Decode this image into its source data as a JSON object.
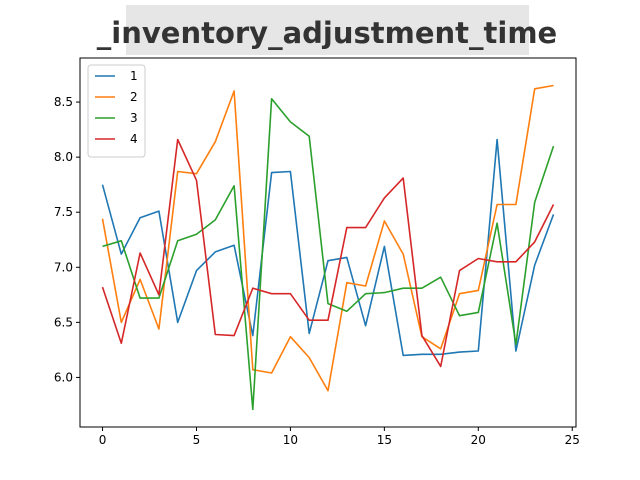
{
  "chart_data": {
    "type": "line",
    "title": "_inventory_adjustment_time",
    "xlabel": "",
    "ylabel": "",
    "xlim": [
      -1.2,
      25.2
    ],
    "ylim": [
      5.55,
      8.9
    ],
    "xticks": [
      0,
      5,
      10,
      15,
      20,
      25
    ],
    "yticks": [
      6.0,
      6.5,
      7.0,
      7.5,
      8.0,
      8.5
    ],
    "ytick_labels": [
      "6.0",
      "6.5",
      "7.0",
      "7.5",
      "8.0",
      "8.5"
    ],
    "grid": false,
    "legend_position": "top-left",
    "x": [
      0,
      1,
      2,
      3,
      4,
      5,
      6,
      7,
      8,
      9,
      10,
      11,
      12,
      13,
      14,
      15,
      16,
      17,
      18,
      19,
      20,
      21,
      22,
      23,
      24
    ],
    "series": [
      {
        "name": "1",
        "color": "#1f77b4",
        "values": [
          7.75,
          7.12,
          7.45,
          7.51,
          6.5,
          6.97,
          7.14,
          7.2,
          6.38,
          7.86,
          7.87,
          6.4,
          7.06,
          7.09,
          6.47,
          7.19,
          6.2,
          6.21,
          6.21,
          6.23,
          6.24,
          8.16,
          6.24,
          7.02,
          7.48
        ]
      },
      {
        "name": "2",
        "color": "#ff7f0e",
        "values": [
          7.44,
          6.5,
          6.89,
          6.44,
          7.87,
          7.85,
          8.14,
          8.6,
          6.07,
          6.04,
          6.37,
          6.18,
          5.88,
          6.86,
          6.83,
          7.42,
          7.12,
          6.37,
          6.26,
          6.76,
          6.79,
          7.57,
          7.57,
          8.62,
          8.65
        ]
      },
      {
        "name": "3",
        "color": "#2ca02c",
        "values": [
          7.19,
          7.24,
          6.72,
          6.72,
          7.24,
          7.3,
          7.43,
          7.74,
          5.71,
          8.53,
          8.32,
          8.19,
          6.67,
          6.6,
          6.76,
          6.77,
          6.81,
          6.81,
          6.91,
          6.56,
          6.59,
          7.4,
          6.3,
          7.59,
          8.1
        ]
      },
      {
        "name": "4",
        "color": "#d62728",
        "values": [
          6.82,
          6.31,
          7.13,
          6.75,
          8.16,
          7.79,
          6.39,
          6.38,
          6.81,
          6.76,
          6.76,
          6.52,
          6.52,
          7.36,
          7.36,
          7.63,
          7.81,
          6.38,
          6.1,
          6.97,
          7.08,
          7.05,
          7.05,
          7.23,
          7.57
        ]
      }
    ]
  }
}
